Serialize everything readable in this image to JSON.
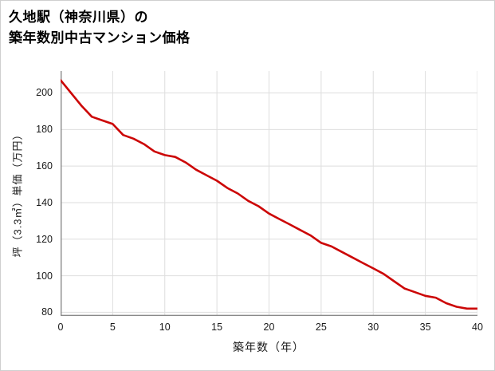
{
  "title": {
    "line1": "久地駅（神奈川県）の",
    "line2": "築年数別中古マンション価格"
  },
  "chart_data": {
    "type": "line",
    "title": "久地駅（神奈川県）の築年数別中古マンション価格",
    "xlabel": "築年数（年）",
    "ylabel": "坪（3.3㎡）単価（万円）",
    "x": [
      0,
      1,
      2,
      3,
      4,
      5,
      6,
      7,
      8,
      9,
      10,
      11,
      12,
      13,
      14,
      15,
      16,
      17,
      18,
      19,
      20,
      21,
      22,
      23,
      24,
      25,
      26,
      27,
      28,
      29,
      30,
      31,
      32,
      33,
      34,
      35,
      36,
      37,
      38,
      39,
      40
    ],
    "series": [
      {
        "name": "坪単価",
        "values": [
          207,
          200,
          193,
          187,
          185,
          183,
          177,
          175,
          172,
          168,
          166,
          165,
          162,
          158,
          155,
          152,
          148,
          145,
          141,
          138,
          134,
          131,
          128,
          125,
          122,
          118,
          116,
          113,
          110,
          107,
          104,
          101,
          97,
          93,
          91,
          89,
          88,
          85,
          83,
          82,
          82
        ]
      }
    ],
    "xlim": [
      0,
      40
    ],
    "ylim": [
      78,
      212
    ],
    "xticks": [
      0,
      5,
      10,
      15,
      20,
      25,
      30,
      35,
      40
    ],
    "yticks": [
      80,
      100,
      120,
      140,
      160,
      180,
      200
    ],
    "grid": true,
    "legend_position": "none",
    "line_color": "#cc0606",
    "grid_color": "#dedede",
    "axis_color": "#8a8a8a"
  }
}
